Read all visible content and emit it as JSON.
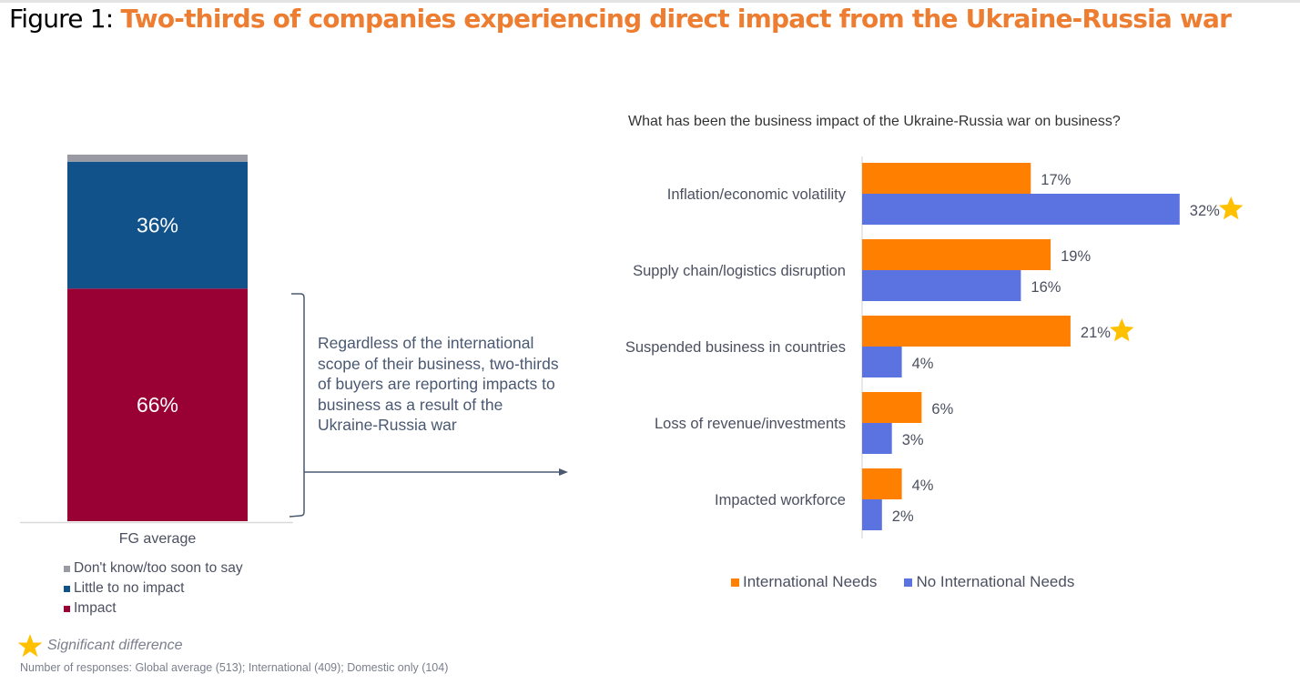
{
  "figure": {
    "prefix": "Figure 1: ",
    "title": "Two-thirds of companies experiencing direct impact from the Ukraine-Russia war",
    "title_color": "#ed7d31"
  },
  "left_chart": {
    "category": "FG average",
    "annotation": "Regardless of the international scope of their business, two-thirds of buyers are reporting impacts to business as a result of the Ukraine-Russia war",
    "legend": [
      {
        "label": "Don't know/too soon to say",
        "color": "#999aa3"
      },
      {
        "label": "Little to no impact",
        "color": "#11528a"
      },
      {
        "label": "Impact",
        "color": "#990033"
      }
    ]
  },
  "significance_note": "Significant difference",
  "responses_note": "Number of responses: Global average (513); International (409); Domestic only (104)",
  "chart_data": [
    {
      "type": "bar",
      "orientation": "stacked-vertical",
      "title": "",
      "categories": [
        "FG average"
      ],
      "series": [
        {
          "name": "Impact",
          "values": [
            66
          ],
          "label": "66%",
          "color": "#990033"
        },
        {
          "name": "Little to no impact",
          "values": [
            36
          ],
          "label": "36%",
          "color": "#11528a"
        },
        {
          "name": "Don't know/too soon to say",
          "values": [
            2
          ],
          "label": "",
          "color": "#999aa3"
        }
      ],
      "legend_position": "bottom"
    },
    {
      "type": "bar",
      "orientation": "horizontal",
      "title": "What has been the business impact of the Ukraine-Russia war on business?",
      "categories": [
        "Inflation/economic volatility",
        "Supply chain/logistics disruption",
        "Suspended business in countries",
        "Loss of revenue/investments",
        "Impacted workforce"
      ],
      "series": [
        {
          "name": "International Needs",
          "values": [
            17,
            19,
            21,
            6,
            4
          ],
          "significant": [
            false,
            false,
            true,
            false,
            false
          ],
          "color": "#ff7f00"
        },
        {
          "name": "No International Needs",
          "values": [
            32,
            16,
            4,
            3,
            2
          ],
          "significant": [
            true,
            false,
            false,
            false,
            false
          ],
          "color": "#5b73e0"
        }
      ],
      "value_suffix": "%",
      "xlim": [
        0,
        35
      ],
      "grid": false,
      "legend_position": "bottom"
    }
  ]
}
